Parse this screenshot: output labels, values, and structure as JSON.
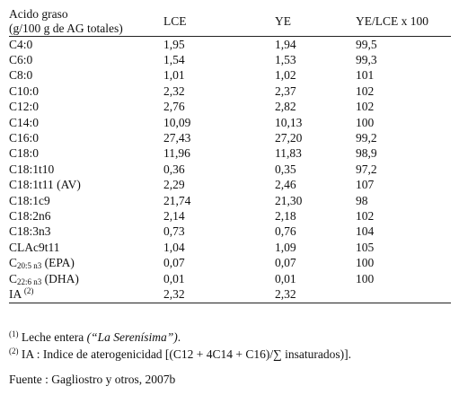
{
  "table": {
    "headers": {
      "col1_line1": "Acido graso",
      "col1_line2": "(g/100 g de AG totales)",
      "col2": "LCE",
      "col3": "YE",
      "col4": "YE/LCE x 100"
    },
    "rows": [
      {
        "name": "C4:0",
        "lce": "1,95",
        "ye": "1,94",
        "ratio": "99,5"
      },
      {
        "name": "C6:0",
        "lce": "1,54",
        "ye": "1,53",
        "ratio": "99,3"
      },
      {
        "name": "C8:0",
        "lce": "1,01",
        "ye": "1,02",
        "ratio": "101"
      },
      {
        "name": "C10:0",
        "lce": "2,32",
        "ye": "2,37",
        "ratio": "102"
      },
      {
        "name": "C12:0",
        "lce": "2,76",
        "ye": "2,82",
        "ratio": "102"
      },
      {
        "name": "C14:0",
        "lce": "10,09",
        "ye": "10,13",
        "ratio": "100"
      },
      {
        "name": "C16:0",
        "lce": "27,43",
        "ye": "27,20",
        "ratio": "99,2"
      },
      {
        "name": "C18:0",
        "lce": "11,96",
        "ye": "11,83",
        "ratio": "98,9"
      },
      {
        "name": "C18:1t10",
        "lce": "0,36",
        "ye": "0,35",
        "ratio": "97,2"
      },
      {
        "name": "C18:1t11 (AV)",
        "lce": "2,29",
        "ye": "2,46",
        "ratio": "107"
      },
      {
        "name": "C18:1c9",
        "lce": "21,74",
        "ye": "21,30",
        "ratio": "98"
      },
      {
        "name": "C18:2n6",
        "lce": "2,14",
        "ye": "2,18",
        "ratio": "102"
      },
      {
        "name": "C18:3n3",
        "lce": "0,73",
        "ye": "0,76",
        "ratio": "104"
      },
      {
        "name": "CLAc9t11",
        "lce": "1,04",
        "ye": "1,09",
        "ratio": "105"
      },
      {
        "name_base": "C",
        "name_sub": "20:5 n3",
        "name_suffix": " (EPA)",
        "lce": "0,07",
        "ye": "0,07",
        "ratio": "100"
      },
      {
        "name_base": "C",
        "name_sub": "22:6 n3",
        "name_suffix": " (DHA)",
        "lce": "0,01",
        "ye": "0,01",
        "ratio": "100"
      },
      {
        "name_base": "IA ",
        "name_sup": "(2)",
        "lce": "2,32",
        "ye": "2,32",
        "ratio": ""
      }
    ]
  },
  "footnotes": {
    "fn1_marker": "(1)",
    "fn1_text": " Leche entera ",
    "fn1_italic": "(“La Serenísima”)",
    "fn1_end": ".",
    "fn2_marker": "(2)",
    "fn2_text": " IA : Indice de aterogenicidad  [(C12 + 4C14 + C16)/∑ insaturados)]."
  },
  "source": "Fuente : Gagliostro y otros, 2007b"
}
